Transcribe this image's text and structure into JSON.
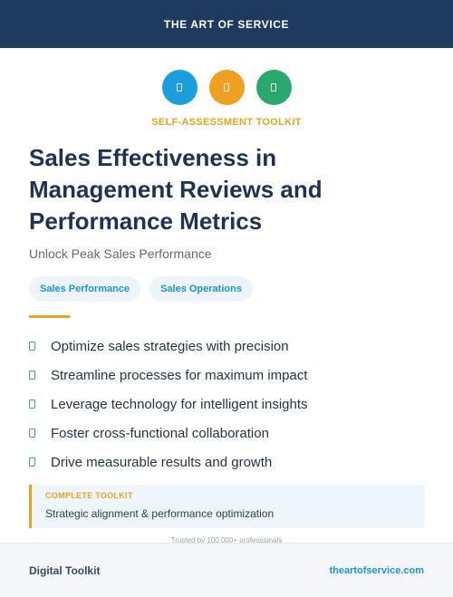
{
  "header": {
    "brand": "THE ART OF SERVICE"
  },
  "icons": [
    {
      "name": "document-icon-blue",
      "color": "#1a9fdc"
    },
    {
      "name": "document-icon-orange",
      "color": "#f0a020"
    },
    {
      "name": "document-icon-green",
      "color": "#2aa96f"
    }
  ],
  "kicker": "SELF-ASSESSMENT TOOLKIT",
  "title_lines": [
    "Sales Effectiveness in",
    "Management Reviews and",
    "Performance Metrics"
  ],
  "subtitle": "Unlock Peak Sales Performance",
  "tags": [
    "Sales Performance",
    "Sales Operations"
  ],
  "benefits": [
    "Optimize sales strategies with precision",
    "Streamline processes for maximum impact",
    "Leverage technology for intelligent insights",
    "Foster cross-functional collaboration",
    "Drive measurable results and growth"
  ],
  "callout": {
    "label": "COMPLETE TOOLKIT",
    "text": "Strategic alignment & performance optimization"
  },
  "trusted": "Trusted by 100,000+ professionals",
  "footer": {
    "left": "Digital Toolkit",
    "right": "theartofservice.com"
  },
  "colors": {
    "navy": "#1f3a5f",
    "accent_orange": "#e8a321",
    "accent_blue": "#1a95d6",
    "check_green": "#3cb371"
  }
}
